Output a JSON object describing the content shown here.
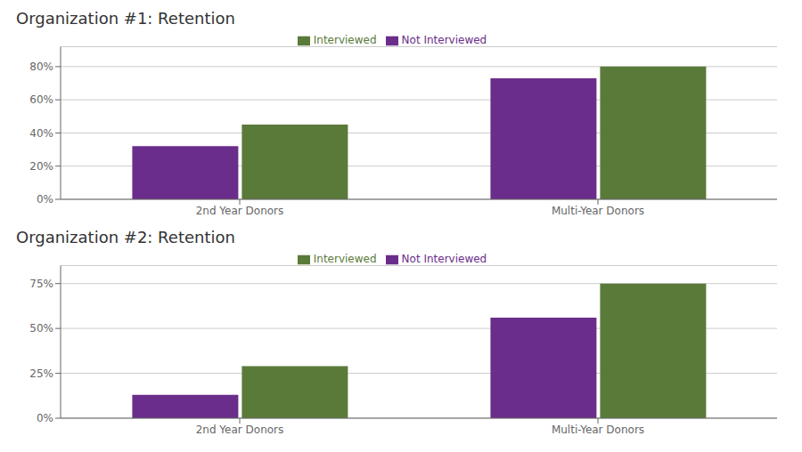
{
  "chart_data": [
    {
      "type": "bar",
      "title": "Organization #1: Retention",
      "categories": [
        "2nd Year Donors",
        "Multi-Year Donors"
      ],
      "series": [
        {
          "name": "Not Interviewed",
          "color": "#6B2D8B",
          "values": [
            0.32,
            0.73
          ]
        },
        {
          "name": "Interviewed",
          "color": "#5A7A3A",
          "values": [
            0.45,
            0.8
          ]
        }
      ],
      "ylim": [
        0,
        0.92
      ],
      "yticks": [
        {
          "value": 0,
          "label": "0%"
        },
        {
          "value": 0.2,
          "label": "20%"
        },
        {
          "value": 0.4,
          "label": "40%"
        },
        {
          "value": 0.6,
          "label": "60%"
        },
        {
          "value": 0.8,
          "label": "80%"
        }
      ],
      "grid": true,
      "legend": "top"
    },
    {
      "type": "bar",
      "title": "Organization #2: Retention",
      "categories": [
        "2nd Year Donors",
        "Multi-Year Donors"
      ],
      "series": [
        {
          "name": "Not Interviewed",
          "color": "#6B2D8B",
          "values": [
            0.13,
            0.56
          ]
        },
        {
          "name": "Interviewed",
          "color": "#5A7A3A",
          "values": [
            0.29,
            0.75
          ]
        }
      ],
      "ylim": [
        0,
        0.85
      ],
      "yticks": [
        {
          "value": 0,
          "label": "0%"
        },
        {
          "value": 0.25,
          "label": "25%"
        },
        {
          "value": 0.5,
          "label": "50%"
        },
        {
          "value": 0.75,
          "label": "75%"
        }
      ],
      "grid": true,
      "legend": "top"
    }
  ]
}
